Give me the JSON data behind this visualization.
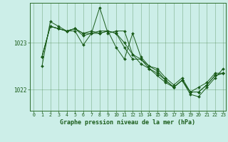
{
  "title": "Graphe pression niveau de la mer (hPa)",
  "background_color": "#cceee8",
  "grid_color": "#2d6e2d",
  "line_color": "#1a5c1a",
  "marker_color": "#1a5c1a",
  "xlim": [
    -0.5,
    23.3
  ],
  "ylim": [
    1021.55,
    1023.85
  ],
  "yticks": [
    1022,
    1023
  ],
  "xticks": [
    0,
    1,
    2,
    3,
    4,
    5,
    6,
    7,
    8,
    9,
    10,
    11,
    12,
    13,
    14,
    15,
    16,
    17,
    18,
    19,
    20,
    21,
    22,
    23
  ],
  "series": [
    [
      1022.7,
      1023.35,
      1023.3,
      1023.25,
      1023.3,
      1023.15,
      1023.2,
      1023.75,
      1023.2,
      1023.25,
      1023.25,
      1022.75,
      1022.65,
      1022.5,
      1022.45,
      1022.25,
      1022.1,
      1022.25,
      1021.95,
      1022.05,
      1022.15,
      1022.35,
      1022.35
    ],
    [
      1022.7,
      1023.35,
      1023.3,
      1023.25,
      1023.3,
      1023.2,
      1023.25,
      1023.2,
      1023.25,
      1023.2,
      1023.0,
      1022.75,
      1022.55,
      1022.45,
      1022.35,
      1022.2,
      1022.05,
      1022.2,
      1021.95,
      1021.95,
      1022.1,
      1022.3,
      1022.35
    ],
    [
      1022.7,
      1023.35,
      1023.3,
      1023.25,
      1023.3,
      1023.2,
      1023.2,
      1023.25,
      1023.25,
      1022.9,
      1022.65,
      1023.2,
      1022.7,
      1022.5,
      1022.4,
      1022.2,
      1022.05,
      1022.2,
      1021.95,
      1021.95,
      1022.1,
      1022.3,
      1022.35
    ],
    [
      1022.5,
      1023.45,
      1023.35,
      1023.25,
      1023.25,
      1022.95,
      1023.2,
      1023.2,
      1023.25,
      1023.2,
      1022.9,
      1022.65,
      1022.65,
      1022.45,
      1022.3,
      1022.15,
      1022.05,
      1022.2,
      1021.9,
      1021.85,
      1022.05,
      1022.25,
      1022.45
    ]
  ]
}
